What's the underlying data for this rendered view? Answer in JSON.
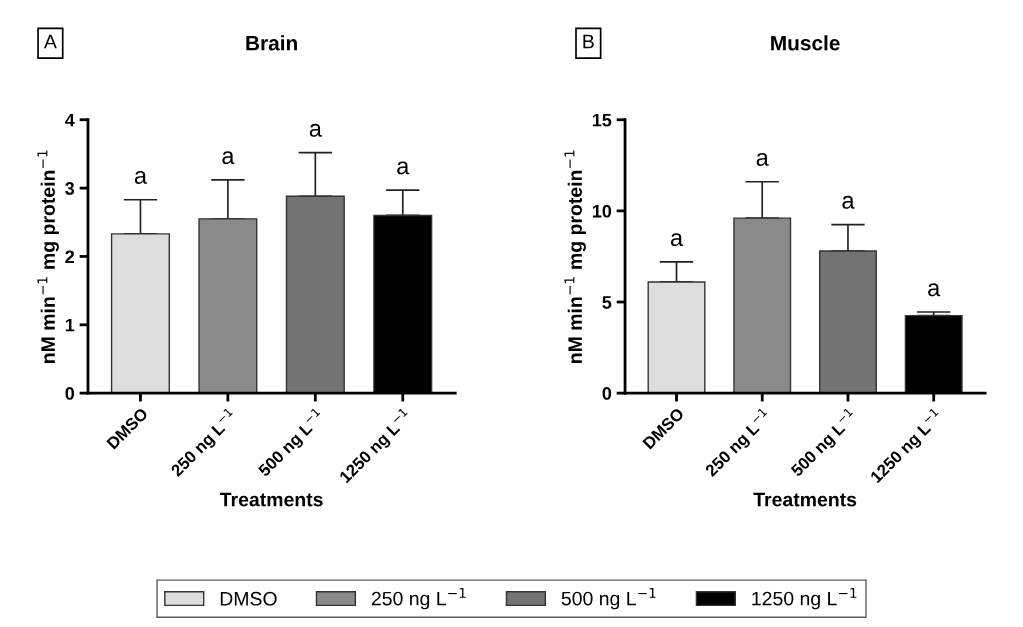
{
  "chart_data": [
    {
      "type": "bar",
      "title": "Brain",
      "xlabel": "Treatments",
      "ylabel": "nM min$^{−1}$ mg protein$^{−1}$",
      "categories": [
        "DMSO",
        "250 ng L$^{−1}$",
        "500 ng L$^{−1}$",
        "1250 ng L$^{−1}$"
      ],
      "series": [
        {
          "name": "DMSO",
          "color": "#dddddd",
          "values": [
            2.33,
            null,
            null,
            null
          ],
          "errors": [
            [
              2.33,
              2.83
            ],
            null,
            null,
            null
          ]
        },
        {
          "name": "250 ng L$^{−1}$",
          "color": "#8a8a8a",
          "values": [
            null,
            2.55,
            null,
            null
          ],
          "errors": [
            null,
            [
              2.55,
              3.12
            ],
            null,
            null
          ]
        },
        {
          "name": "500 ng L$^{−1}$",
          "color": "#737373",
          "values": [
            null,
            null,
            2.88,
            null
          ],
          "errors": [
            null,
            null,
            [
              2.88,
              3.52
            ],
            null
          ]
        },
        {
          "name": "1250 ng L$^{−1}$",
          "color": "#000000",
          "values": [
            null,
            null,
            null,
            2.6
          ],
          "errors": [
            null,
            null,
            null,
            [
              2.6,
              2.97
            ]
          ]
        }
      ],
      "ylim": [
        0,
        4
      ],
      "yticks": [
        0,
        1,
        2,
        3,
        4
      ],
      "grid": false,
      "legend": "bottom",
      "annotations": [
        "A",
        {
          "text": "a",
          "x": "DMSO",
          "y": 2.83
        },
        {
          "text": "a",
          "x": "250 ng L$^{−1}$",
          "y": 3.12
        },
        {
          "text": "a",
          "x": "500 ng L$^{−1}$",
          "y": 3.52
        },
        {
          "text": "a",
          "x": "1250 ng L$^{−1}$",
          "y": 2.97
        }
      ]
    },
    {
      "type": "bar",
      "title": "Muscle",
      "xlabel": "Treatments",
      "ylabel": "nM min$^{−1}$ mg protein$^{−1}$",
      "categories": [
        "DMSO",
        "250 ng L$^{−1}$",
        "500 ng L$^{−1}$",
        "1250 ng L$^{−1}$"
      ],
      "series": [
        {
          "color": "#dddddd",
          "values": [
            6.1,
            null,
            null,
            null
          ],
          "errors": [
            [
              6.1,
              7.2
            ],
            null,
            null,
            null
          ]
        },
        {
          "color": "#8a8a8a",
          "values": [
            null,
            9.6,
            null,
            null
          ],
          "errors": [
            null,
            [
              9.6,
              11.6
            ],
            null,
            null
          ]
        },
        {
          "color": "#737373",
          "values": [
            null,
            null,
            7.8,
            null
          ],
          "errors": [
            null,
            null,
            [
              7.8,
              9.25
            ],
            null
          ]
        },
        {
          "color": "#000000",
          "values": [
            null,
            null,
            null,
            4.25
          ],
          "errors": [
            null,
            null,
            null,
            [
              4.25,
              4.45
            ]
          ]
        }
      ],
      "ylim": [
        0,
        15
      ],
      "yticks": [
        0,
        5,
        10,
        15
      ],
      "grid": false,
      "annotations": [
        "B",
        {
          "text": "a",
          "x": "DMSO",
          "y": 7.2
        },
        {
          "text": "a",
          "x": "250 ng L$^{−1}$",
          "y": 11.6
        },
        {
          "text": "a",
          "x": "500 ng L$^{−1}$",
          "y": 9.25
        },
        {
          "text": "a",
          "x": "1250 ng L$^{−1}$",
          "y": 4.45
        }
      ]
    }
  ]
}
